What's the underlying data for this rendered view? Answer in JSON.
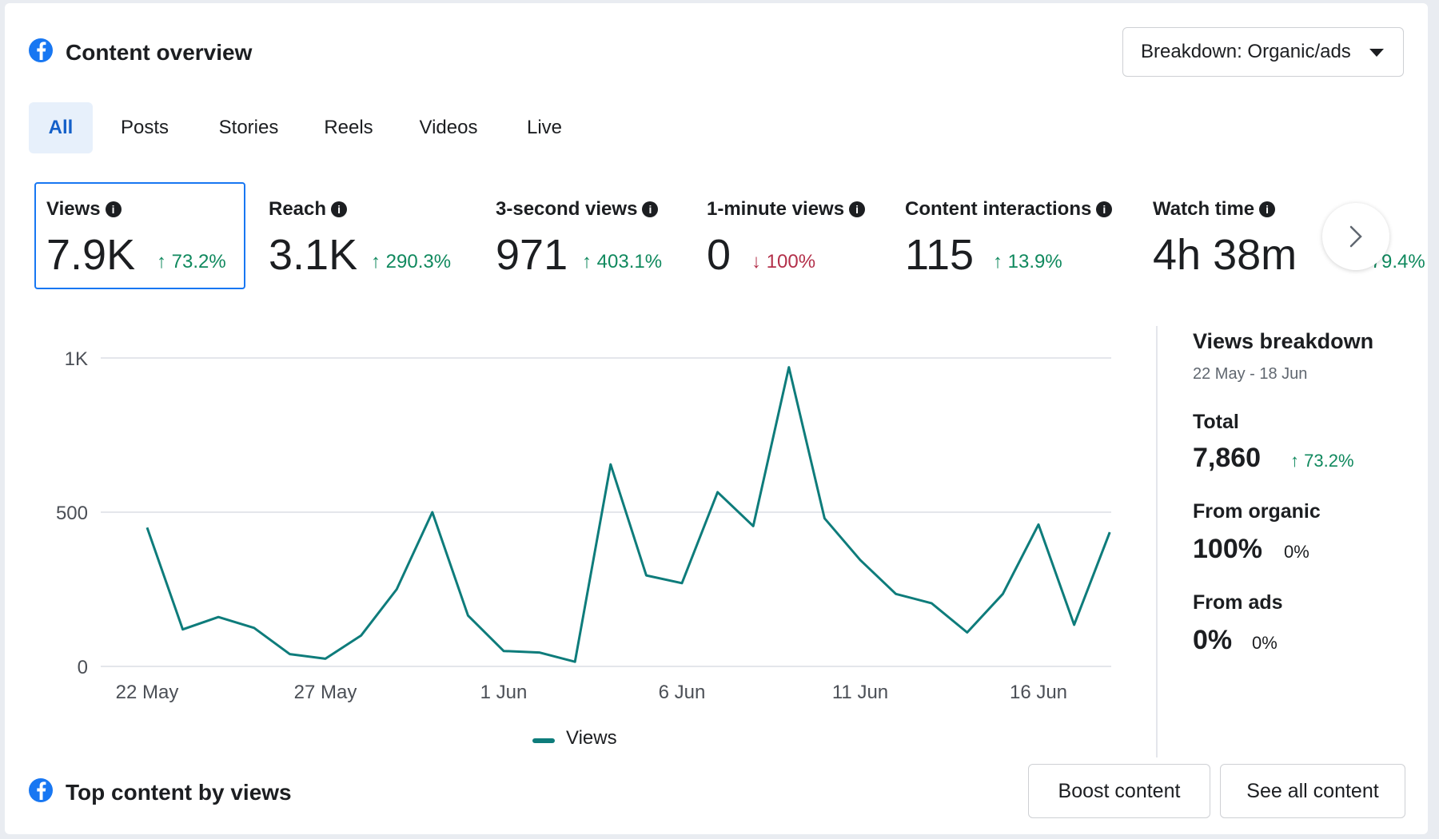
{
  "header": {
    "title": "Content overview",
    "breakdown_label": "Breakdown: Organic/ads"
  },
  "tabs": [
    {
      "label": "All",
      "active": true
    },
    {
      "label": "Posts"
    },
    {
      "label": "Stories"
    },
    {
      "label": "Reels"
    },
    {
      "label": "Videos"
    },
    {
      "label": "Live"
    }
  ],
  "metrics": [
    {
      "label": "Views",
      "value": "7.9K",
      "change": "73.2%",
      "direction": "up"
    },
    {
      "label": "Reach",
      "value": "3.1K",
      "change": "290.3%",
      "direction": "up"
    },
    {
      "label": "3-second views",
      "value": "971",
      "change": "403.1%",
      "direction": "up"
    },
    {
      "label": "1-minute views",
      "value": "0",
      "change": "100%",
      "direction": "down"
    },
    {
      "label": "Content interactions",
      "value": "115",
      "change": "13.9%",
      "direction": "up"
    },
    {
      "label": "Watch time",
      "value": "4h 38m",
      "change": "79.4%",
      "direction": "up"
    }
  ],
  "chart_data": {
    "type": "line",
    "series": [
      {
        "name": "Views",
        "color": "#0e7c7b",
        "x": [
          "22 May",
          "23 May",
          "24 May",
          "25 May",
          "26 May",
          "27 May",
          "28 May",
          "29 May",
          "30 May",
          "31 May",
          "1 Jun",
          "2 Jun",
          "3 Jun",
          "4 Jun",
          "5 Jun",
          "6 Jun",
          "7 Jun",
          "8 Jun",
          "9 Jun",
          "10 Jun",
          "11 Jun",
          "12 Jun",
          "13 Jun",
          "14 Jun",
          "15 Jun",
          "16 Jun",
          "17 Jun",
          "18 Jun"
        ],
        "values": [
          450,
          120,
          160,
          125,
          40,
          25,
          100,
          250,
          500,
          165,
          50,
          45,
          15,
          655,
          295,
          270,
          565,
          455,
          970,
          480,
          345,
          235,
          205,
          110,
          235,
          460,
          135,
          435
        ]
      }
    ],
    "x_ticks": [
      "22 May",
      "27 May",
      "1 Jun",
      "6 Jun",
      "11 Jun",
      "16 Jun"
    ],
    "y_ticks": [
      "0",
      "500",
      "1K"
    ],
    "ylim": [
      0,
      1000
    ],
    "grid": true,
    "legend": "bottom"
  },
  "breakdown_panel": {
    "title": "Views breakdown",
    "date_range": "22 May - 18 Jun",
    "total_label": "Total",
    "total_value": "7,860",
    "total_change": "73.2%",
    "organic_label": "From organic",
    "organic_value": "100%",
    "organic_change": "0%",
    "ads_label": "From ads",
    "ads_value": "0%",
    "ads_change": "0%"
  },
  "bottom": {
    "title": "Top content by views",
    "boost_label": "Boost content",
    "see_all_label": "See all content"
  },
  "icons": {
    "arrow_up": "↑",
    "arrow_down": "↓",
    "info": "i"
  }
}
